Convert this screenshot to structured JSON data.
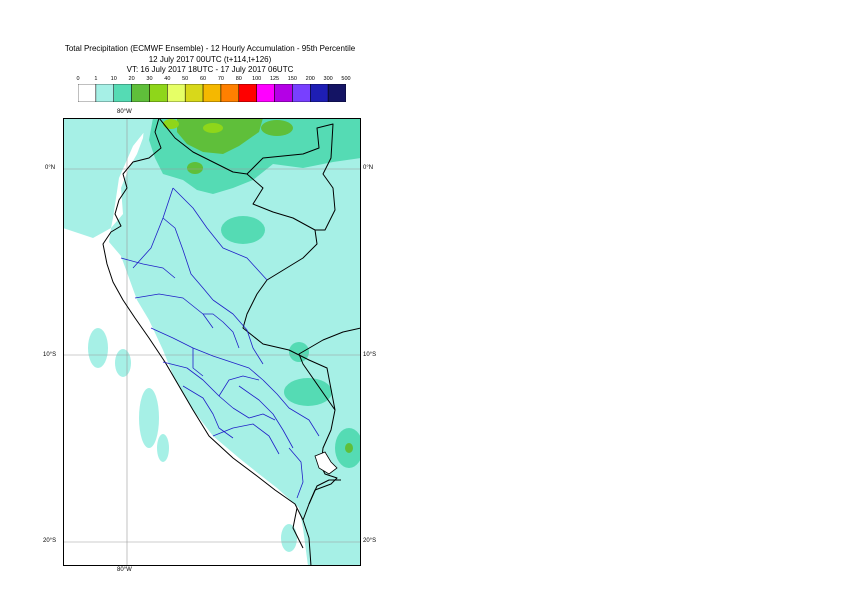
{
  "title": {
    "line1": "Total Precipitation (ECMWF Ensemble) - 12 Hourly Accumulation - 95th Percentile",
    "line2": "12 July 2017 00UTC (t+114,t+126)",
    "line3": "VT: 16 July 2017 18UTC - 17 July 2017 06UTC"
  },
  "legend": {
    "ticks": [
      "0",
      "1",
      "10",
      "20",
      "30",
      "40",
      "50",
      "60",
      "70",
      "80",
      "100",
      "125",
      "150",
      "200",
      "300",
      "500"
    ],
    "colors": [
      "#ffffff",
      "#a6f0e6",
      "#55dbb4",
      "#5fbf3a",
      "#8fd61a",
      "#e6ff66",
      "#d8d81a",
      "#f5b800",
      "#ff8000",
      "#ff0000",
      "#ff00ff",
      "#b400e6",
      "#7840ff",
      "#1e1eb4",
      "#141464"
    ]
  },
  "axes": {
    "lon_top": "80°W",
    "lon_bottom": "80°W",
    "lat_left": [
      "0°N",
      "10°S",
      "20°S"
    ],
    "lat_right": [
      "0°N",
      "10°S",
      "20°S"
    ]
  }
}
